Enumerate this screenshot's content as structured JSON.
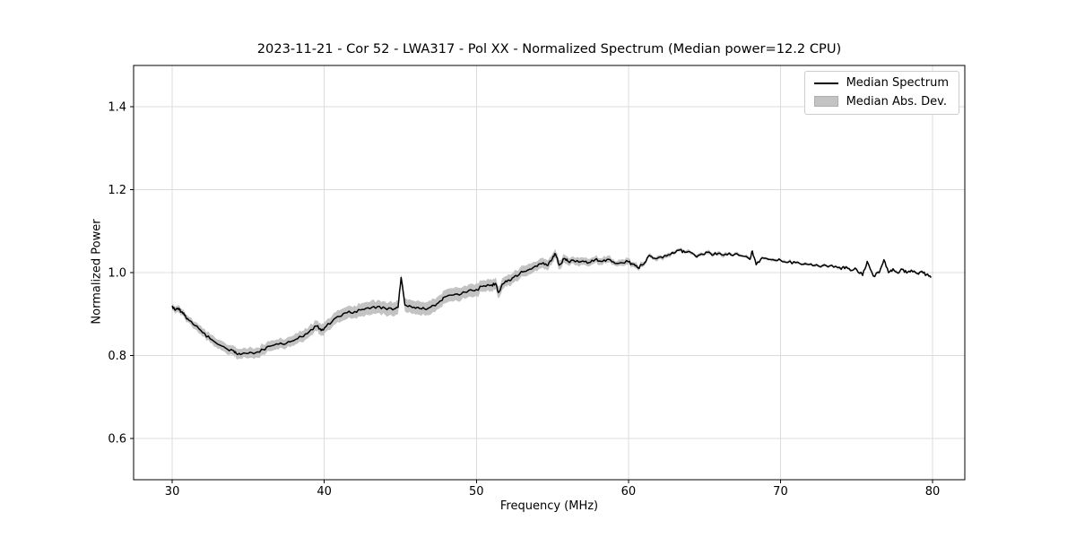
{
  "figure": {
    "title": "2023-11-21 - Cor 52 - LWA317 - Pol XX - Normalized Spectrum (Median power=12.2 CPU)"
  },
  "legend": {
    "entries": [
      {
        "label": "Median Spectrum",
        "type": "line",
        "color": "#000000"
      },
      {
        "label": "Median Abs. Dev.",
        "type": "patch",
        "color": "#c3c3c3"
      }
    ]
  },
  "colors": {
    "line": "#000000",
    "band": "#c3c3c3",
    "grid": "#dcdcdc",
    "frame": "#000000",
    "background": "#ffffff",
    "text": "#000000"
  },
  "chart_data": {
    "type": "line",
    "title": "2023-11-21 - Cor 52 - LWA317 - Pol XX - Normalized Spectrum (Median power=12.2 CPU)",
    "xlabel": "Frequency (MHz)",
    "ylabel": "Normalized Power",
    "xlim": [
      27.46,
      82.12
    ],
    "ylim": [
      0.5,
      1.5
    ],
    "xticks": [
      30,
      40,
      50,
      60,
      70,
      80
    ],
    "xtick_labels": [
      "30",
      "40",
      "50",
      "60",
      "70",
      "80"
    ],
    "yticks": [
      0.6,
      0.8,
      1.0,
      1.2,
      1.4
    ],
    "ytick_labels": [
      "0.6",
      "0.8",
      "1.0",
      "1.2",
      "1.4"
    ],
    "grid": true,
    "legend_position": "upper right",
    "median_power_cpu": 12.2,
    "series": [
      {
        "name": "Median Spectrum",
        "x": [
          30.0,
          30.2,
          30.4,
          30.6,
          30.8,
          31.0,
          31.5,
          32.0,
          32.5,
          33.0,
          33.5,
          34.0,
          34.2,
          34.6,
          35.0,
          35.5,
          36.0,
          36.4,
          37.0,
          37.5,
          38.0,
          38.5,
          39.0,
          39.5,
          39.8,
          40.0,
          40.5,
          41.0,
          41.5,
          42.0,
          42.5,
          43.0,
          43.5,
          44.0,
          44.5,
          44.85,
          45.05,
          45.3,
          45.7,
          46.1,
          46.4,
          46.8,
          47.2,
          47.6,
          47.9,
          48.5,
          49.0,
          49.5,
          50.0,
          50.5,
          51.0,
          51.25,
          51.45,
          51.7,
          52.0,
          52.3,
          52.6,
          52.9,
          53.2,
          53.5,
          54.0,
          54.4,
          54.7,
          55.0,
          55.2,
          55.45,
          55.8,
          56.0,
          56.5,
          57.0,
          57.4,
          57.8,
          58.2,
          58.6,
          59.0,
          59.5,
          60.0,
          60.3,
          60.6,
          61.0,
          61.3,
          61.6,
          62.0,
          62.5,
          63.0,
          63.4,
          63.7,
          64.0,
          64.4,
          64.8,
          65.2,
          65.6,
          66.0,
          66.5,
          67.0,
          67.5,
          68.0,
          68.15,
          68.4,
          68.8,
          69.2,
          69.6,
          70.0,
          70.5,
          71.0,
          71.5,
          72.0,
          72.5,
          73.0,
          73.5,
          74.0,
          74.3,
          74.6,
          75.0,
          75.4,
          75.7,
          76.1,
          76.5,
          76.8,
          77.1,
          77.4,
          77.7,
          78.0,
          78.3,
          78.6,
          79.0,
          79.3,
          79.6,
          79.9
        ],
        "y": [
          0.92,
          0.909,
          0.914,
          0.905,
          0.897,
          0.889,
          0.872,
          0.855,
          0.84,
          0.827,
          0.818,
          0.812,
          0.805,
          0.804,
          0.805,
          0.807,
          0.814,
          0.822,
          0.827,
          0.829,
          0.836,
          0.845,
          0.857,
          0.871,
          0.86,
          0.866,
          0.881,
          0.894,
          0.903,
          0.906,
          0.911,
          0.913,
          0.918,
          0.914,
          0.91,
          0.916,
          0.988,
          0.922,
          0.918,
          0.916,
          0.912,
          0.913,
          0.921,
          0.931,
          0.941,
          0.946,
          0.948,
          0.957,
          0.959,
          0.968,
          0.97,
          0.974,
          0.952,
          0.972,
          0.978,
          0.983,
          0.993,
          1.0,
          1.003,
          1.008,
          1.015,
          1.024,
          1.017,
          1.034,
          1.045,
          1.018,
          1.034,
          1.028,
          1.026,
          1.028,
          1.024,
          1.031,
          1.027,
          1.032,
          1.026,
          1.024,
          1.026,
          1.02,
          1.012,
          1.02,
          1.039,
          1.035,
          1.037,
          1.04,
          1.047,
          1.055,
          1.049,
          1.051,
          1.04,
          1.045,
          1.049,
          1.043,
          1.047,
          1.043,
          1.045,
          1.04,
          1.032,
          1.052,
          1.019,
          1.036,
          1.032,
          1.03,
          1.03,
          1.025,
          1.024,
          1.02,
          1.021,
          1.016,
          1.017,
          1.013,
          1.008,
          1.014,
          1.005,
          1.008,
          0.993,
          1.027,
          0.992,
          1.0,
          1.031,
          1.0,
          1.009,
          0.999,
          1.008,
          0.999,
          1.006,
          0.998,
          1.003,
          0.995,
          0.988
        ]
      },
      {
        "name": "Median Abs. Dev.",
        "band_halfwidth": [
          0.008,
          0.008,
          0.008,
          0.008,
          0.008,
          0.008,
          0.009,
          0.01,
          0.01,
          0.011,
          0.011,
          0.012,
          0.012,
          0.012,
          0.012,
          0.012,
          0.012,
          0.012,
          0.012,
          0.012,
          0.013,
          0.013,
          0.013,
          0.013,
          0.014,
          0.014,
          0.014,
          0.015,
          0.015,
          0.015,
          0.016,
          0.016,
          0.016,
          0.016,
          0.016,
          0.016,
          0.008,
          0.016,
          0.016,
          0.016,
          0.016,
          0.016,
          0.016,
          0.016,
          0.016,
          0.016,
          0.015,
          0.015,
          0.015,
          0.014,
          0.014,
          0.014,
          0.014,
          0.014,
          0.013,
          0.013,
          0.013,
          0.013,
          0.013,
          0.013,
          0.012,
          0.012,
          0.012,
          0.011,
          0.011,
          0.011,
          0.01,
          0.01,
          0.009,
          0.009,
          0.009,
          0.008,
          0.008,
          0.008,
          0.007,
          0.007,
          0.007,
          0.006,
          0.006,
          0.006,
          0.005,
          0.005,
          0.005,
          0.005,
          0.005,
          0.004,
          0.004,
          0.004,
          0.004,
          0.004,
          0.004,
          0.004,
          0.004,
          0.004,
          0.004,
          0.003,
          0.003,
          0.003,
          0.003,
          0.003,
          0.003,
          0.003,
          0.003,
          0.003,
          0.003,
          0.003,
          0.003,
          0.003,
          0.003,
          0.003,
          0.003,
          0.003,
          0.003,
          0.003,
          0.003,
          0.003,
          0.003,
          0.003,
          0.003,
          0.003,
          0.003,
          0.003,
          0.003,
          0.003,
          0.003,
          0.003,
          0.003,
          0.003,
          0.003
        ]
      }
    ],
    "noise": {
      "seed": 7,
      "amplitude": 0.0038,
      "subdivisions": 3
    }
  }
}
